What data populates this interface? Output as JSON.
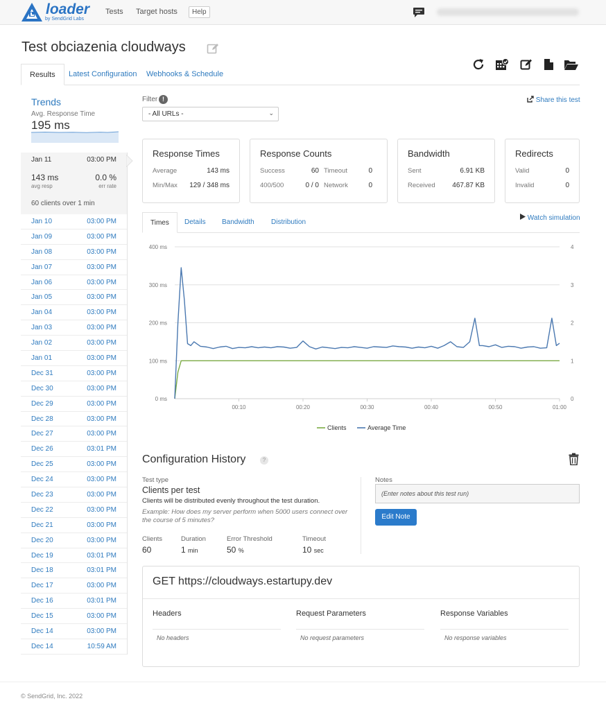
{
  "nav": {
    "logo_text": "loader",
    "logo_sub": "by SendGrid Labs",
    "links": [
      "Tests",
      "Target hosts"
    ],
    "help": "Help"
  },
  "page": {
    "title": "Test obciazenia cloudways"
  },
  "tabs": [
    "Results",
    "Latest Configuration",
    "Webhooks & Schedule"
  ],
  "sidebar": {
    "trends": "Trends",
    "trend_label": "Avg. Response Time",
    "trend_value": "195 ms",
    "current": {
      "date": "Jan 11",
      "time": "03:00 PM",
      "resp": "143 ms",
      "resp_label": "avg resp",
      "err": "0.0 %",
      "err_label": "err rate",
      "clients": "60 clients over 1 min"
    },
    "runs": [
      {
        "date": "Jan 10",
        "time": "03:00 PM"
      },
      {
        "date": "Jan 09",
        "time": "03:00 PM"
      },
      {
        "date": "Jan 08",
        "time": "03:00 PM"
      },
      {
        "date": "Jan 07",
        "time": "03:00 PM"
      },
      {
        "date": "Jan 06",
        "time": "03:00 PM"
      },
      {
        "date": "Jan 05",
        "time": "03:00 PM"
      },
      {
        "date": "Jan 04",
        "time": "03:00 PM"
      },
      {
        "date": "Jan 03",
        "time": "03:00 PM"
      },
      {
        "date": "Jan 02",
        "time": "03:00 PM"
      },
      {
        "date": "Jan 01",
        "time": "03:00 PM"
      },
      {
        "date": "Dec 31",
        "time": "03:00 PM"
      },
      {
        "date": "Dec 30",
        "time": "03:00 PM"
      },
      {
        "date": "Dec 29",
        "time": "03:00 PM"
      },
      {
        "date": "Dec 28",
        "time": "03:00 PM"
      },
      {
        "date": "Dec 27",
        "time": "03:00 PM"
      },
      {
        "date": "Dec 26",
        "time": "03:01 PM"
      },
      {
        "date": "Dec 25",
        "time": "03:00 PM"
      },
      {
        "date": "Dec 24",
        "time": "03:00 PM"
      },
      {
        "date": "Dec 23",
        "time": "03:00 PM"
      },
      {
        "date": "Dec 22",
        "time": "03:00 PM"
      },
      {
        "date": "Dec 21",
        "time": "03:00 PM"
      },
      {
        "date": "Dec 20",
        "time": "03:00 PM"
      },
      {
        "date": "Dec 19",
        "time": "03:01 PM"
      },
      {
        "date": "Dec 18",
        "time": "03:01 PM"
      },
      {
        "date": "Dec 17",
        "time": "03:00 PM"
      },
      {
        "date": "Dec 16",
        "time": "03:01 PM"
      },
      {
        "date": "Dec 15",
        "time": "03:00 PM"
      },
      {
        "date": "Dec 14",
        "time": "03:00 PM"
      },
      {
        "date": "Dec 14",
        "time": "10:59 AM"
      }
    ]
  },
  "filter": {
    "label": "Filter",
    "info": "!",
    "selected": "- All URLs -",
    "share": "Share this test"
  },
  "cards": {
    "response_times": {
      "title": "Response Times",
      "average_label": "Average",
      "average": "143 ms",
      "minmax_label": "Min/Max",
      "minmax": "129 / 348 ms"
    },
    "response_counts": {
      "title": "Response Counts",
      "success_label": "Success",
      "success": "60",
      "timeout_label": "Timeout",
      "timeout": "0",
      "r400_label": "400/500",
      "r400": "0 / 0",
      "network_label": "Network",
      "network": "0"
    },
    "bandwidth": {
      "title": "Bandwidth",
      "sent_label": "Sent",
      "sent": "6.91 KB",
      "received_label": "Received",
      "received": "467.87 KB"
    },
    "redirects": {
      "title": "Redirects",
      "valid_label": "Valid",
      "valid": "0",
      "invalid_label": "Invalid",
      "invalid": "0"
    }
  },
  "chart_tabs": [
    "Times",
    "Details",
    "Bandwidth",
    "Distribution"
  ],
  "watch": "Watch simulation",
  "chart_data": {
    "type": "line",
    "title": "",
    "xlabel": "",
    "ylabel": "",
    "x_ticks": [
      "00:10",
      "00:20",
      "00:30",
      "00:40",
      "00:50",
      "01:00"
    ],
    "y_ticks_left": [
      "400 ms",
      "300 ms",
      "200 ms",
      "100 ms",
      "0 ms"
    ],
    "y_ticks_right": [
      "4",
      "3",
      "2",
      "1",
      "0"
    ],
    "ylim_left": [
      0,
      400
    ],
    "ylim_right": [
      0,
      4
    ],
    "xlim": [
      0,
      60
    ],
    "grid": true,
    "legend": "bottom-center",
    "colors": {
      "clients": "#7cab45",
      "average_time": "#4a78b0"
    },
    "series": [
      {
        "name": "Clients",
        "axis": "right",
        "x": [
          0,
          0.5,
          1,
          60
        ],
        "values": [
          0,
          0.7,
          1,
          1
        ]
      },
      {
        "name": "Average Time",
        "axis": "left",
        "x": [
          0,
          0.5,
          1,
          1.5,
          2,
          2.5,
          3,
          4,
          5,
          6,
          7,
          8,
          9,
          10,
          11,
          12,
          13,
          14,
          15,
          16,
          17,
          18,
          19,
          20,
          21,
          22,
          23,
          24,
          25,
          26,
          27,
          28,
          29,
          30,
          31,
          32,
          33,
          34,
          35,
          36,
          37,
          38,
          39,
          40,
          41,
          42,
          43,
          44,
          45,
          46,
          46.8,
          47.5,
          48,
          49,
          50,
          51,
          52,
          53,
          54,
          55,
          56,
          57,
          58,
          58.8,
          59.5,
          60
        ],
        "values": [
          0,
          200,
          345,
          260,
          145,
          140,
          150,
          138,
          136,
          132,
          136,
          138,
          132,
          135,
          134,
          137,
          134,
          136,
          134,
          137,
          136,
          133,
          135,
          152,
          137,
          131,
          136,
          134,
          132,
          135,
          134,
          137,
          135,
          133,
          137,
          136,
          135,
          139,
          137,
          136,
          133,
          136,
          134,
          138,
          133,
          140,
          150,
          137,
          135,
          150,
          212,
          140,
          140,
          137,
          142,
          135,
          138,
          137,
          133,
          136,
          137,
          133,
          134,
          212,
          140,
          146
        ]
      }
    ]
  },
  "config": {
    "title": "Configuration History",
    "help": "?",
    "test_type_label": "Test type",
    "test_type": "Clients per test",
    "test_type_desc": "Clients will be distributed evenly throughout the test duration.",
    "example": "Example: How does my server perform when 5000 users connect over the course of 5 minutes?",
    "clients_label": "Clients",
    "clients": "60",
    "duration_label": "Duration",
    "duration": "1",
    "duration_unit": "min",
    "error_label": "Error Threshold",
    "error": "50",
    "error_unit": "%",
    "timeout_label": "Timeout",
    "timeout": "10",
    "timeout_unit": "sec",
    "notes_label": "Notes",
    "notes_placeholder": "(Enter notes about this test run)",
    "edit_note": "Edit Note"
  },
  "request": {
    "title": "GET https://cloudways.estartupy.dev",
    "headers_label": "Headers",
    "headers_value": "No headers",
    "params_label": "Request Parameters",
    "params_value": "No request parameters",
    "vars_label": "Response Variables",
    "vars_value": "No response variables"
  },
  "footer": "© SendGrid, Inc. 2022"
}
